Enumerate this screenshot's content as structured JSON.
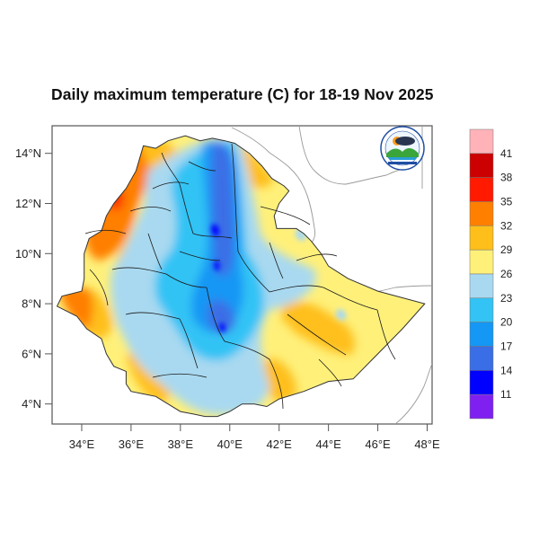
{
  "title": "Daily maximum temperature (C) for 18-19 Nov 2025",
  "map": {
    "region": "Ethiopia",
    "variable": "Daily maximum temperature",
    "units": "C",
    "lon_range": [
      32.8,
      48.2
    ],
    "lat_range": [
      3.2,
      15.1
    ],
    "lat_ticks": [
      {
        "value": 14,
        "label": "14°N"
      },
      {
        "value": 12,
        "label": "12°N"
      },
      {
        "value": 10,
        "label": "10°N"
      },
      {
        "value": 8,
        "label": "8°N"
      },
      {
        "value": 6,
        "label": "6°N"
      },
      {
        "value": 4,
        "label": "4°N"
      }
    ],
    "lon_ticks": [
      {
        "value": 34,
        "label": "34°E"
      },
      {
        "value": 36,
        "label": "36°E"
      },
      {
        "value": 38,
        "label": "38°E"
      },
      {
        "value": 40,
        "label": "40°E"
      },
      {
        "value": 42,
        "label": "42°E"
      },
      {
        "value": 44,
        "label": "44°E"
      },
      {
        "value": 46,
        "label": "46°E"
      },
      {
        "value": 48,
        "label": "48°E"
      }
    ]
  },
  "colorbar": {
    "levels": [
      "41",
      "38",
      "35",
      "32",
      "29",
      "26",
      "23",
      "20",
      "17",
      "14",
      "11"
    ],
    "colors": [
      "#ffb3b8",
      "#cc0000",
      "#ff1a00",
      "#ff7f00",
      "#ffbf1a",
      "#fff07a",
      "#a9d9f0",
      "#33c3f5",
      "#1497f5",
      "#3a6ee6",
      "#0000ff",
      "#7f20f0"
    ]
  },
  "logo": {
    "name": "Ethiopian Meteorology Institute",
    "icon": "ethiopian-meteorology-institute-logo"
  }
}
